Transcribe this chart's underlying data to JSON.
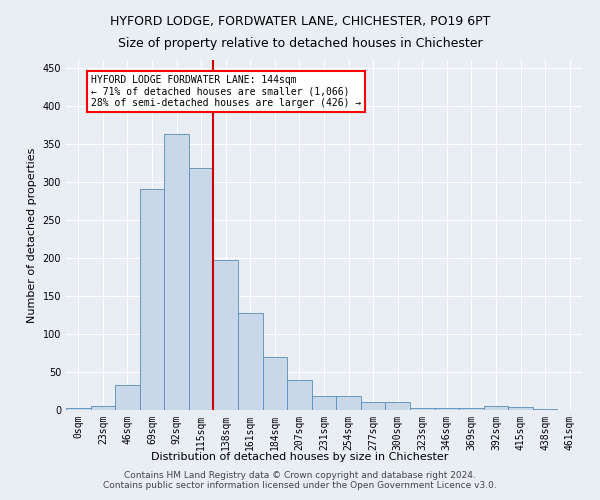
{
  "title": "HYFORD LODGE, FORDWATER LANE, CHICHESTER, PO19 6PT",
  "subtitle": "Size of property relative to detached houses in Chichester",
  "xlabel": "Distribution of detached houses by size in Chichester",
  "ylabel": "Number of detached properties",
  "bar_labels": [
    "0sqm",
    "23sqm",
    "46sqm",
    "69sqm",
    "92sqm",
    "115sqm",
    "138sqm",
    "161sqm",
    "184sqm",
    "207sqm",
    "231sqm",
    "254sqm",
    "277sqm",
    "300sqm",
    "323sqm",
    "346sqm",
    "369sqm",
    "392sqm",
    "415sqm",
    "438sqm",
    "461sqm"
  ],
  "bar_values": [
    2,
    5,
    33,
    290,
    363,
    318,
    197,
    127,
    70,
    40,
    19,
    19,
    11,
    10,
    2,
    2,
    2,
    5,
    4,
    1,
    0
  ],
  "bar_color": "#c8d8e8",
  "bar_edge_color": "#5b8db8",
  "highlight_bar_index": 6,
  "highlight_color": "#cc0000",
  "annotation_text": "HYFORD LODGE FORDWATER LANE: 144sqm\n← 71% of detached houses are smaller (1,066)\n28% of semi-detached houses are larger (426) →",
  "ylim": [
    0,
    460
  ],
  "yticks": [
    0,
    50,
    100,
    150,
    200,
    250,
    300,
    350,
    400,
    450
  ],
  "footer_text": "Contains HM Land Registry data © Crown copyright and database right 2024.\nContains public sector information licensed under the Open Government Licence v3.0.",
  "background_color": "#e8eef4",
  "grid_color": "#ffffff",
  "title_fontsize": 9,
  "subtitle_fontsize": 9,
  "xlabel_fontsize": 8,
  "ylabel_fontsize": 8,
  "footer_fontsize": 6.5,
  "tick_fontsize": 7
}
